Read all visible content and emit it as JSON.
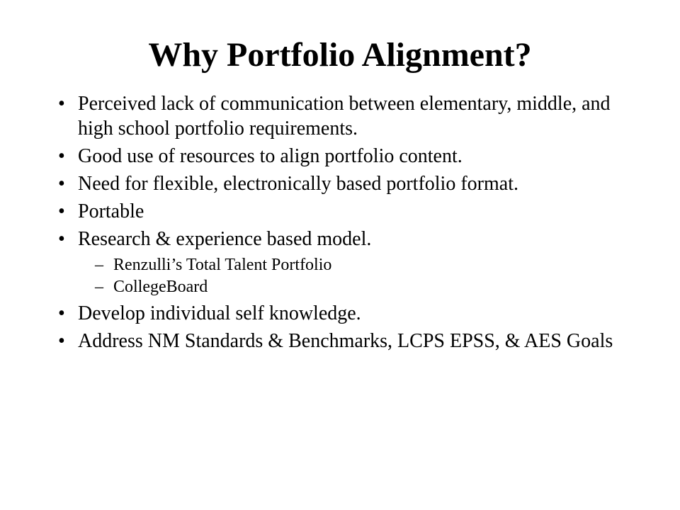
{
  "slide": {
    "title": "Why Portfolio Alignment?",
    "title_fontsize": 48,
    "title_weight": "bold",
    "title_align": "center",
    "font_family": "Times New Roman",
    "text_color": "#000000",
    "background_color": "#ffffff",
    "body_fontsize": 28,
    "sub_fontsize": 24,
    "bullets": [
      {
        "text": "Perceived lack of communication between elementary, middle, and high school portfolio requirements."
      },
      {
        "text": "Good use of resources to align portfolio content."
      },
      {
        "text": "Need for flexible, electronically based portfolio format."
      },
      {
        "text": "Portable"
      },
      {
        "text": "Research & experience based model.",
        "sub": [
          "Renzulli’s Total Talent Portfolio",
          "CollegeBoard"
        ]
      },
      {
        "text": "Develop individual self knowledge."
      },
      {
        "text": "Address NM Standards & Benchmarks, LCPS EPSS, & AES Goals"
      }
    ]
  }
}
